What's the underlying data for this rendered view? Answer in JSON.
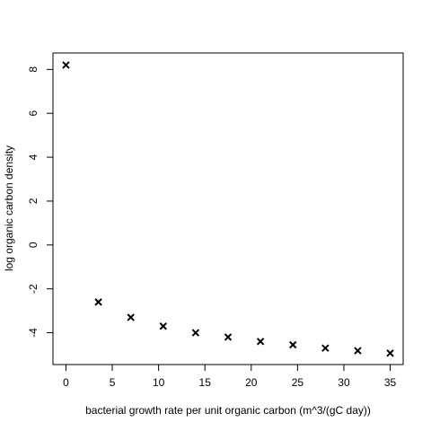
{
  "chart_data": {
    "type": "scatter",
    "title": "",
    "xlabel": "bacterial growth rate per unit organic carbon (m^3/(gC day))",
    "ylabel": "log organic carbon density",
    "xlim": [
      -1.4,
      36.4
    ],
    "ylim": [
      -5.45,
      8.75
    ],
    "x_ticks": [
      0,
      5,
      10,
      15,
      20,
      25,
      30,
      35
    ],
    "y_ticks": [
      -4,
      -2,
      0,
      2,
      4,
      6,
      8
    ],
    "marker": "x",
    "grid": false,
    "legend": false,
    "series": [
      {
        "x": [
          0,
          3.5,
          7,
          10.5,
          14,
          17.5,
          21,
          24.5,
          28,
          31.5,
          35
        ],
        "y": [
          8.2,
          -2.6,
          -3.3,
          -3.7,
          -4.0,
          -4.2,
          -4.4,
          -4.55,
          -4.7,
          -4.82,
          -4.93
        ]
      }
    ]
  }
}
